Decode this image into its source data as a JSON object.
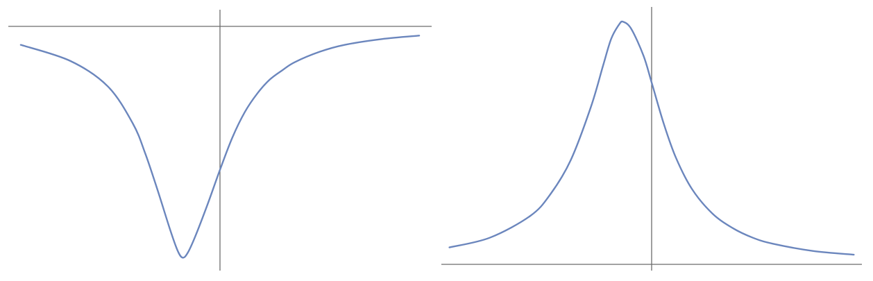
{
  "chart_data": [
    {
      "type": "line",
      "title": "",
      "xlabel": "",
      "ylabel": "",
      "grid": false,
      "legend": "none",
      "color": "#6b86bd",
      "axis_color": "#6b6b6b",
      "xlim": [
        -8.5,
        8.5
      ],
      "ylim": [
        -1.05,
        0.06
      ],
      "series": [
        {
          "x": [
            -8.0,
            -6.0,
            -4.5,
            -3.5,
            -3.0,
            -2.5,
            -2.0,
            -1.7,
            -1.5,
            -1.3,
            -1.0,
            -0.5,
            0.0,
            0.5,
            1.0,
            1.5,
            2.0,
            2.5,
            3.0,
            4.0,
            5.0,
            6.5,
            8.0
          ],
          "y": [
            -0.08,
            -0.15,
            -0.26,
            -0.42,
            -0.55,
            -0.71,
            -0.88,
            -0.97,
            -1.0,
            -0.98,
            -0.91,
            -0.77,
            -0.62,
            -0.48,
            -0.37,
            -0.29,
            -0.23,
            -0.19,
            -0.155,
            -0.11,
            -0.08,
            -0.055,
            -0.04
          ]
        }
      ]
    },
    {
      "type": "line",
      "title": "",
      "xlabel": "",
      "ylabel": "",
      "grid": false,
      "legend": "none",
      "color": "#6b86bd",
      "axis_color": "#6b6b6b",
      "xlim": [
        -5.2,
        5.2
      ],
      "ylim": [
        -0.02,
        1.05
      ],
      "series": [
        {
          "x": [
            -5.0,
            -4.0,
            -3.0,
            -2.5,
            -2.0,
            -1.5,
            -1.2,
            -1.0,
            -0.8,
            -0.7,
            -0.5,
            -0.2,
            0.0,
            0.3,
            0.6,
            1.0,
            1.5,
            2.0,
            2.5,
            3.0,
            4.0,
            5.0
          ],
          "y": [
            0.07,
            0.11,
            0.2,
            0.29,
            0.43,
            0.65,
            0.82,
            0.93,
            0.99,
            1.0,
            0.97,
            0.86,
            0.75,
            0.58,
            0.44,
            0.31,
            0.21,
            0.15,
            0.11,
            0.085,
            0.055,
            0.04
          ]
        }
      ]
    }
  ]
}
